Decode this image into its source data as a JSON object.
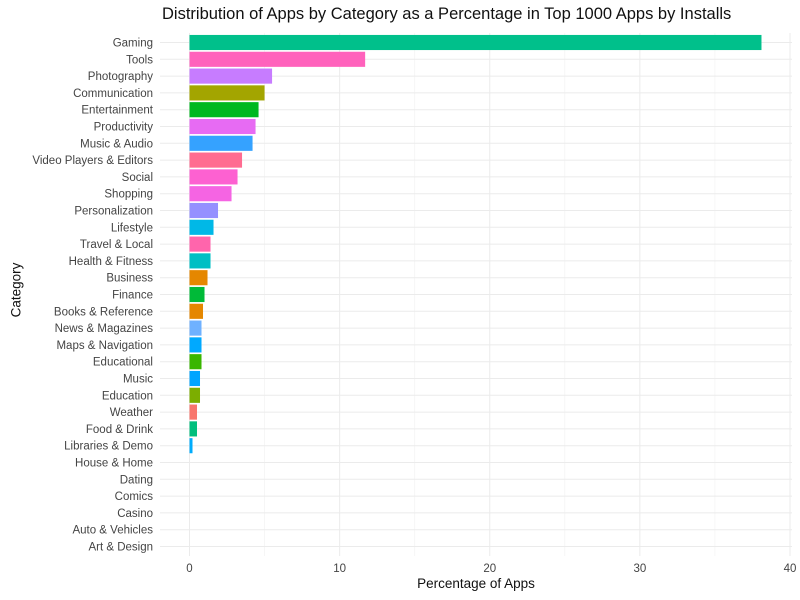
{
  "chart_data": {
    "type": "bar",
    "orientation": "horizontal",
    "title": "Distribution of Apps by Category as a Percentage in Top 1000 Apps by Installs",
    "xlabel": "Percentage of Apps",
    "ylabel": "Category",
    "xlim": [
      0,
      40
    ],
    "xticks": [
      0,
      10,
      20,
      30,
      40
    ],
    "grid": true,
    "legend": "none",
    "categories": [
      "Gaming",
      "Tools",
      "Photography",
      "Communication",
      "Entertainment",
      "Productivity",
      "Music & Audio",
      "Video Players & Editors",
      "Social",
      "Shopping",
      "Personalization",
      "Lifestyle",
      "Travel & Local",
      "Health & Fitness",
      "Business",
      "Finance",
      "Books & Reference",
      "News & Magazines",
      "Maps & Navigation",
      "Educational",
      "Music",
      "Education",
      "Weather",
      "Food & Drink",
      "Libraries & Demo",
      "House & Home",
      "Dating",
      "Comics",
      "Casino",
      "Auto & Vehicles",
      "Art & Design"
    ],
    "values": [
      38.1,
      11.7,
      5.5,
      5.0,
      4.6,
      4.4,
      4.2,
      3.5,
      3.2,
      2.8,
      1.9,
      1.6,
      1.4,
      1.4,
      1.2,
      1.0,
      0.9,
      0.8,
      0.8,
      0.8,
      0.7,
      0.7,
      0.5,
      0.5,
      0.2,
      0.0,
      0.0,
      0.0,
      0.0,
      0.0,
      0.0
    ],
    "colors": [
      "#00C08B",
      "#FF62BC",
      "#C77CFF",
      "#A3A500",
      "#00B81F",
      "#E76BF3",
      "#35A2FF",
      "#FF6C91",
      "#FD61D1",
      "#F564E3",
      "#9590FF",
      "#00B8E7",
      "#FF65AC",
      "#00BFC4",
      "#E58700",
      "#00BA38",
      "#E58700",
      "#6FB1FF",
      "#00A9FF",
      "#39B600",
      "#00A5FF",
      "#7CAE00",
      "#F8766D",
      "#00BF7D",
      "#00ACFC",
      "#C99800",
      "#D89000",
      "#00C1A3",
      "#9CA700",
      "#FF6A98",
      "#F8766D"
    ]
  }
}
